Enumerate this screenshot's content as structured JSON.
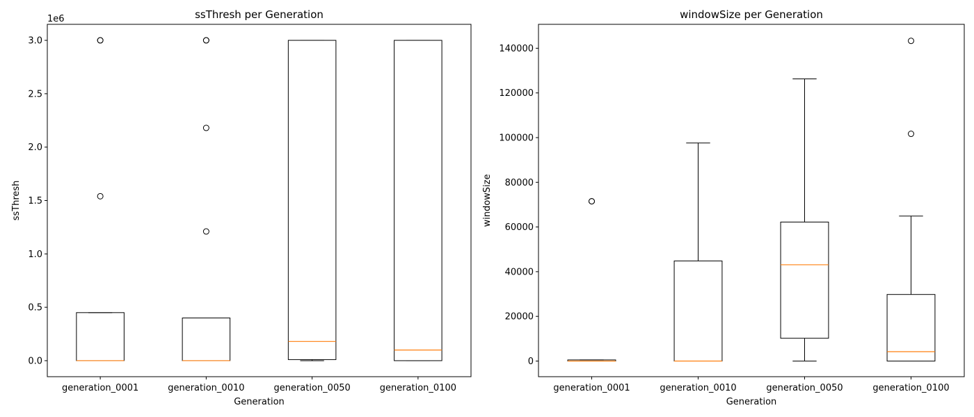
{
  "chart_data": [
    {
      "type": "box",
      "title": "ssThresh per Generation",
      "xlabel": "Generation",
      "ylabel": "ssThresh",
      "y_offset_label": "1e6",
      "y_scale_factor": 1000000,
      "ylim": [
        -150000,
        3150000
      ],
      "yticks": [
        0,
        500000,
        1000000,
        1500000,
        2000000,
        2500000,
        3000000
      ],
      "ytick_labels": [
        "0.0",
        "0.5",
        "1.0",
        "1.5",
        "2.0",
        "2.5",
        "3.0"
      ],
      "categories": [
        "generation_0001",
        "generation_0010",
        "generation_0050",
        "generation_0100"
      ],
      "boxes": [
        {
          "whisker_low": 0,
          "q1": 0,
          "median": 0,
          "q3": 450000,
          "whisker_high": 450000,
          "outliers": [
            1540000,
            3000000,
            3000000
          ]
        },
        {
          "whisker_low": 0,
          "q1": 0,
          "median": 0,
          "q3": 400000,
          "whisker_high": 400000,
          "outliers": [
            1210000,
            2180000,
            3000000,
            3000000
          ]
        },
        {
          "whisker_low": 0,
          "q1": 10000,
          "median": 180000,
          "q3": 3000000,
          "whisker_high": 3000000,
          "outliers": []
        },
        {
          "whisker_low": 0,
          "q1": 0,
          "median": 100000,
          "q3": 3000000,
          "whisker_high": 3000000,
          "outliers": []
        }
      ],
      "colors": {
        "box": "#000000",
        "median": "#ff7f0e"
      }
    },
    {
      "type": "box",
      "title": "windowSize per Generation",
      "xlabel": "Generation",
      "ylabel": "windowSize",
      "ylim": [
        -7000,
        150700
      ],
      "yticks": [
        0,
        20000,
        40000,
        60000,
        80000,
        100000,
        120000,
        140000
      ],
      "ytick_labels": [
        "0",
        "20000",
        "40000",
        "60000",
        "80000",
        "100000",
        "120000",
        "140000"
      ],
      "categories": [
        "generation_0001",
        "generation_0010",
        "generation_0050",
        "generation_0100"
      ],
      "boxes": [
        {
          "whisker_low": 0,
          "q1": 0,
          "median": 0,
          "q3": 500,
          "whisker_high": 500,
          "outliers": [
            71500,
            71500
          ]
        },
        {
          "whisker_low": 0,
          "q1": 0,
          "median": 0,
          "q3": 44800,
          "whisker_high": 97600,
          "outliers": []
        },
        {
          "whisker_low": 0,
          "q1": 10200,
          "median": 43100,
          "q3": 62200,
          "whisker_high": 126300,
          "outliers": []
        },
        {
          "whisker_low": 0,
          "q1": 0,
          "median": 4200,
          "q3": 29800,
          "whisker_high": 64900,
          "outliers": [
            101700,
            143300
          ]
        }
      ],
      "colors": {
        "box": "#000000",
        "median": "#ff7f0e"
      }
    }
  ]
}
